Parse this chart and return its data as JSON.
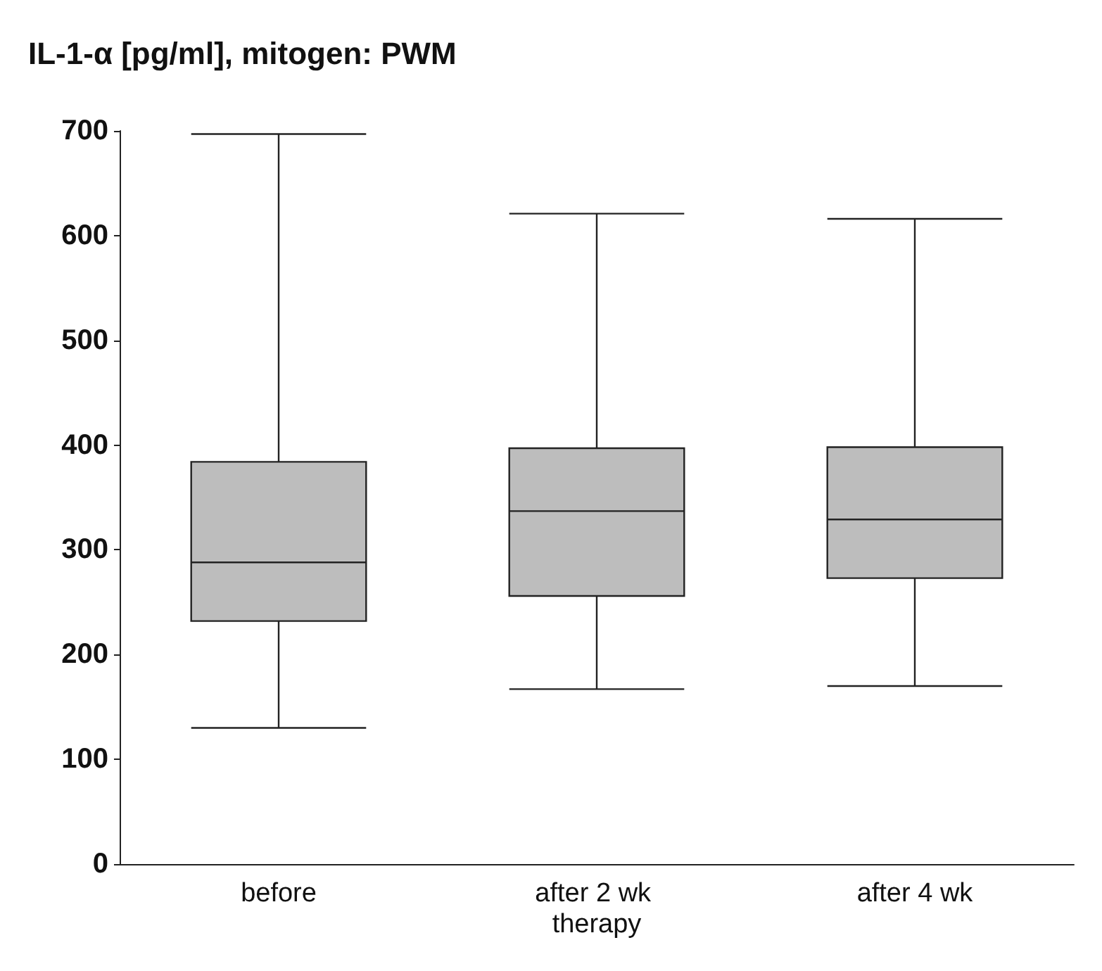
{
  "chart_data": {
    "type": "box",
    "title": "IL-1-α [pg/ml], mitogen: PWM",
    "categories": [
      "before",
      "after 2 wk therapy",
      "after 4 wk"
    ],
    "boxes": [
      {
        "low": 130,
        "q1": 232,
        "median": 288,
        "q3": 384,
        "high": 697
      },
      {
        "low": 167,
        "q1": 256,
        "median": 337,
        "q3": 397,
        "high": 621
      },
      {
        "low": 170,
        "q1": 273,
        "median": 329,
        "q3": 398,
        "high": 616
      }
    ],
    "color": "#bdbdbd",
    "ylim": [
      0,
      700
    ],
    "yticks": [
      0,
      100,
      200,
      300,
      400,
      500,
      600,
      700
    ],
    "grid": false
  }
}
